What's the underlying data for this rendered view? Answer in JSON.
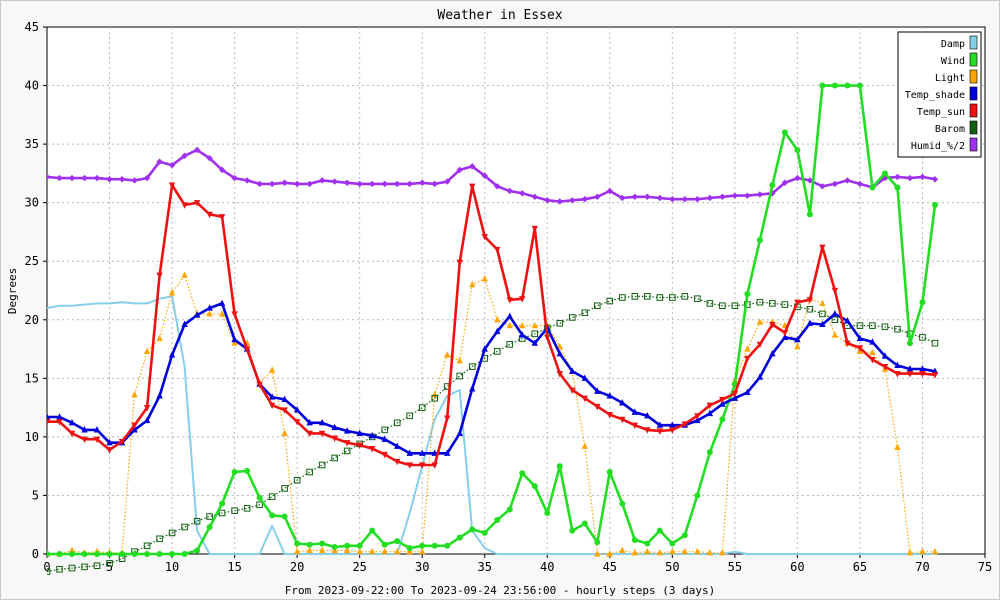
{
  "chart_data": {
    "type": "line",
    "title": "Weather in Essex",
    "xlabel": "From 2023-09-22:00 To 2023-09-24 23:56:00 - hourly steps (3 days)",
    "ylabel": "Degrees",
    "xlim": [
      0,
      75
    ],
    "ylim": [
      0,
      45
    ],
    "xticks": [
      0,
      5,
      10,
      15,
      20,
      25,
      30,
      35,
      40,
      45,
      50,
      55,
      60,
      65,
      70,
      75
    ],
    "yticks": [
      0,
      5,
      10,
      15,
      20,
      25,
      30,
      35,
      40,
      45
    ],
    "grid": true,
    "legend_position": "top-right",
    "series": [
      {
        "name": "Damp",
        "color": "#87ceeb",
        "marker": "none",
        "style": "solid",
        "values": [
          21,
          21.2,
          21.2,
          21.3,
          21.4,
          21.4,
          21.5,
          21.4,
          21.4,
          21.8,
          22,
          16,
          2,
          0,
          0,
          0,
          0,
          0,
          2.4,
          0,
          0,
          0,
          0,
          0,
          0,
          0,
          0,
          0,
          0,
          3.5,
          7.5,
          11.5,
          13.5,
          14,
          2,
          0.5,
          0,
          0,
          0,
          0,
          0,
          0,
          0,
          0,
          0,
          0,
          0,
          0,
          0,
          0,
          0,
          0,
          0,
          0,
          0,
          0.2,
          0,
          0,
          0,
          0,
          0,
          0,
          0,
          0,
          0,
          0,
          0,
          0,
          0,
          0,
          0,
          0
        ]
      },
      {
        "name": "Wind",
        "color": "#22dd22",
        "marker": "circle",
        "style": "solid",
        "values": [
          0,
          0,
          0,
          0,
          0,
          0,
          0,
          0,
          0,
          0,
          0,
          0,
          0.3,
          2.3,
          4.3,
          7,
          7.1,
          4.8,
          3.3,
          3.2,
          0.9,
          0.8,
          0.9,
          0.6,
          0.7,
          0.7,
          2,
          0.8,
          1.1,
          0.5,
          0.7,
          0.7,
          0.7,
          1.4,
          2.1,
          1.8,
          2.9,
          3.8,
          6.9,
          5.8,
          3.5,
          7.5,
          2,
          2.6,
          1,
          7,
          4.3,
          1.2,
          0.9,
          2,
          0.9,
          1.6,
          5,
          8.7,
          11.5,
          14.5,
          22.2,
          26.8,
          31.5,
          36,
          34.5,
          29,
          40,
          40,
          40,
          40,
          31.3,
          32.5,
          31.3,
          18,
          21.5,
          29.8
        ]
      },
      {
        "name": "Light",
        "color": "#ffa500",
        "marker": "triangle-up",
        "style": "dotted",
        "values": [
          0,
          0,
          0.3,
          0.1,
          0.2,
          0.1,
          0.1,
          13.6,
          17.3,
          18.4,
          22.3,
          23.8,
          20.5,
          20.5,
          20.5,
          18,
          18,
          14.6,
          15.7,
          10.3,
          0.2,
          0.3,
          0.3,
          0.3,
          0.3,
          0.2,
          0.2,
          0.2,
          0.2,
          0.2,
          0.2,
          13.6,
          17,
          16.5,
          23,
          23.5,
          20,
          19.5,
          19.5,
          19.5,
          19.5,
          17.7,
          15.6,
          9.2,
          0,
          0,
          0.3,
          0.1,
          0.2,
          0.1,
          0.2,
          0.2,
          0.2,
          0.1,
          0.1,
          14.8,
          17.5,
          19.8,
          19.8,
          19.5,
          17.7,
          21.8,
          21.4,
          18.7,
          18,
          17.3,
          17.2,
          15.8,
          9.1,
          0.1,
          0.2,
          0.2
        ]
      },
      {
        "name": "Temp_shade",
        "color": "#0000dd",
        "marker": "triangle-up",
        "style": "solid",
        "values": [
          11.7,
          11.7,
          11.2,
          10.6,
          10.6,
          9.5,
          9.5,
          10.6,
          11.4,
          13.5,
          17,
          19.6,
          20.4,
          21,
          21.4,
          18.3,
          17.5,
          14.5,
          13.4,
          13.2,
          12.3,
          11.2,
          11.2,
          10.8,
          10.5,
          10.3,
          10.1,
          9.8,
          9.2,
          8.6,
          8.6,
          8.6,
          8.6,
          10.3,
          14.1,
          17.5,
          19,
          20.3,
          18.7,
          18,
          19.3,
          17.1,
          15.6,
          15,
          13.9,
          13.5,
          12.9,
          12.1,
          11.8,
          11,
          11,
          11,
          11.4,
          12,
          12.8,
          13.3,
          13.8,
          15.1,
          17.1,
          18.5,
          18.3,
          19.7,
          19.6,
          20.5,
          19.9,
          18.4,
          18.1,
          16.9,
          16.1,
          15.8,
          15.8,
          15.6
        ]
      },
      {
        "name": "Temp_sun",
        "color": "#ee1111",
        "marker": "triangle-down",
        "style": "solid",
        "values": [
          11.3,
          11.3,
          10.3,
          9.8,
          9.8,
          8.9,
          9.6,
          11,
          12.5,
          23.8,
          31.5,
          29.8,
          30,
          29,
          28.8,
          20.5,
          17.5,
          14.5,
          12.7,
          12.3,
          11.3,
          10.3,
          10.3,
          9.9,
          9.5,
          9.3,
          9,
          8.5,
          7.9,
          7.6,
          7.6,
          7.6,
          11.6,
          24.9,
          31.4,
          27.1,
          26,
          21.7,
          21.8,
          27.8,
          18.5,
          15.4,
          14,
          13.3,
          12.6,
          11.9,
          11.5,
          11,
          10.6,
          10.5,
          10.6,
          11.1,
          11.8,
          12.7,
          13.2,
          13.7,
          16.7,
          17.9,
          19.6,
          18.9,
          21.5,
          21.7,
          26.2,
          22.5,
          18,
          17.6,
          16.6,
          16,
          15.4,
          15.4,
          15.4,
          15.3
        ]
      },
      {
        "name": "Barom",
        "color": "#106010",
        "marker": "square-open",
        "style": "dotted",
        "values": [
          -1.5,
          -1.3,
          -1.2,
          -1.1,
          -1,
          -0.8,
          -0.4,
          0.2,
          0.7,
          1.3,
          1.8,
          2.3,
          2.8,
          3.2,
          3.5,
          3.7,
          3.9,
          4.2,
          4.9,
          5.6,
          6.3,
          7,
          7.6,
          8.2,
          8.8,
          9.4,
          10,
          10.6,
          11.2,
          11.8,
          12.5,
          13.3,
          14.3,
          15.2,
          16,
          16.7,
          17.3,
          17.9,
          18.4,
          18.8,
          19.3,
          19.7,
          20.2,
          20.6,
          21.2,
          21.6,
          21.9,
          22,
          22,
          21.9,
          21.9,
          22,
          21.8,
          21.4,
          21.2,
          21.2,
          21.3,
          21.5,
          21.4,
          21.3,
          21.1,
          20.9,
          20.5,
          20,
          19.5,
          19.5,
          19.5,
          19.4,
          19.2,
          18.8,
          18.5,
          18
        ]
      },
      {
        "name": "Humid_%/2",
        "color": "#a030f0",
        "marker": "diamond",
        "style": "solid",
        "values": [
          32.2,
          32.1,
          32.1,
          32.1,
          32.1,
          32,
          32,
          31.9,
          32.1,
          33.5,
          33.2,
          34,
          34.5,
          33.8,
          32.8,
          32.1,
          31.9,
          31.6,
          31.6,
          31.7,
          31.6,
          31.6,
          31.9,
          31.8,
          31.7,
          31.6,
          31.6,
          31.6,
          31.6,
          31.6,
          31.7,
          31.6,
          31.8,
          32.8,
          33.1,
          32.3,
          31.4,
          31,
          30.8,
          30.5,
          30.2,
          30.1,
          30.2,
          30.3,
          30.5,
          31,
          30.4,
          30.5,
          30.5,
          30.4,
          30.3,
          30.3,
          30.3,
          30.4,
          30.5,
          30.6,
          30.6,
          30.7,
          30.8,
          31.7,
          32.1,
          31.9,
          31.4,
          31.6,
          31.9,
          31.6,
          31.3,
          32.1,
          32.2,
          32.1,
          32.2,
          32
        ]
      }
    ]
  }
}
